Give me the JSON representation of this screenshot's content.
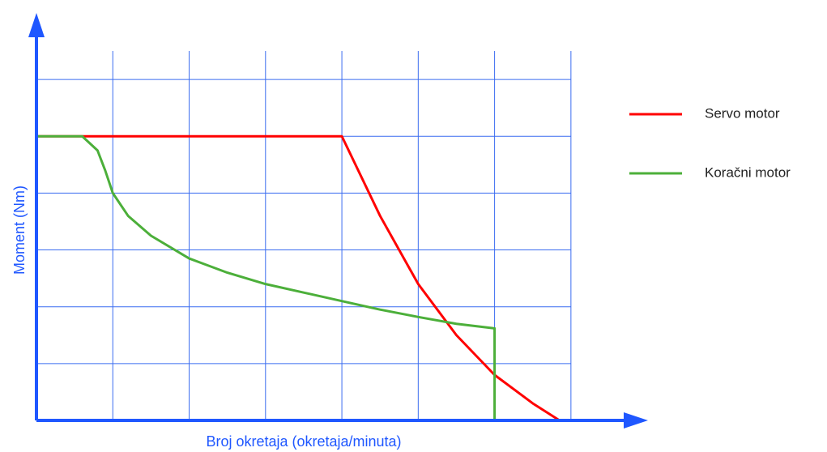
{
  "chart_data": {
    "type": "line",
    "title": "",
    "xlabel": "Broj okretaja (okretaja/minuta)",
    "ylabel": "Moment (Nm)",
    "xlim": [
      0,
      7.5
    ],
    "ylim": [
      0,
      6.5
    ],
    "grid": true,
    "grid_x_divisions": 7,
    "grid_y_divisions": 6,
    "legend_position": "right",
    "colors": {
      "axis": "#1f57ff",
      "grid": "#3a6cf0",
      "axis_title": "#1f57ff"
    },
    "series": [
      {
        "name": "Servo motor",
        "color": "#ff0000",
        "points": [
          [
            0,
            5
          ],
          [
            0.6,
            5
          ],
          [
            4,
            5
          ],
          [
            4.5,
            3.6
          ],
          [
            5,
            2.4
          ],
          [
            5.5,
            1.5
          ],
          [
            6,
            0.8
          ],
          [
            6.5,
            0.3
          ],
          [
            6.85,
            0
          ]
        ]
      },
      {
        "name": "Koračni motor",
        "color": "#4caf3a",
        "points": [
          [
            0,
            5
          ],
          [
            0.6,
            5
          ],
          [
            0.8,
            4.75
          ],
          [
            0.9,
            4.4
          ],
          [
            1,
            4
          ],
          [
            1.2,
            3.6
          ],
          [
            1.5,
            3.25
          ],
          [
            2,
            2.85
          ],
          [
            2.5,
            2.6
          ],
          [
            3,
            2.4
          ],
          [
            3.5,
            2.25
          ],
          [
            4,
            2.1
          ],
          [
            4.5,
            1.95
          ],
          [
            5,
            1.82
          ],
          [
            5.5,
            1.7
          ],
          [
            6,
            1.62
          ],
          [
            6,
            0
          ]
        ]
      }
    ]
  }
}
